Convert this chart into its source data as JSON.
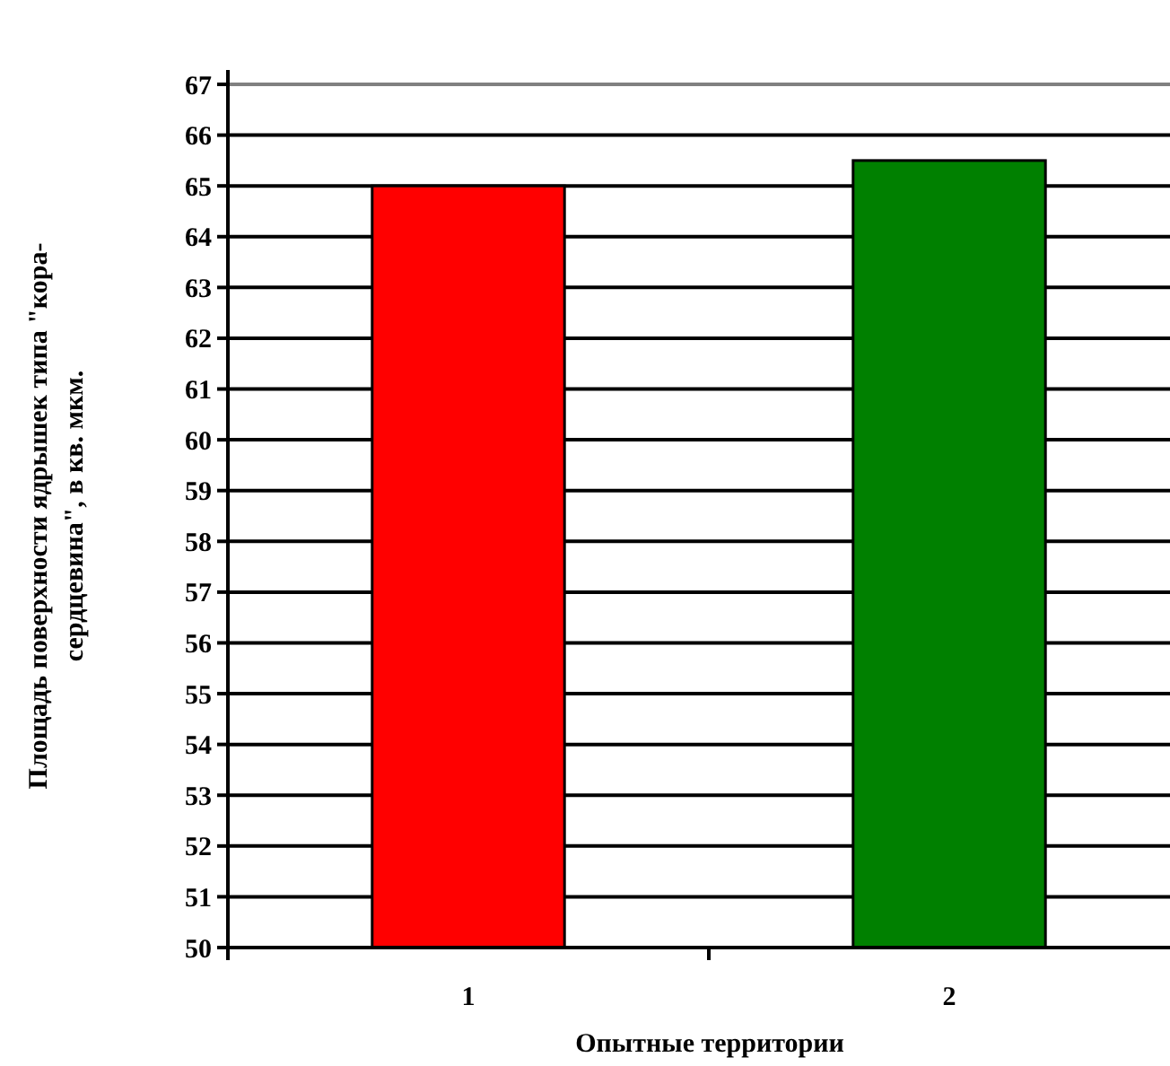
{
  "chart_data": {
    "type": "bar",
    "categories": [
      "1",
      "2"
    ],
    "values": [
      65,
      65.5
    ],
    "colors": [
      "#ff0000",
      "#008000"
    ],
    "xlabel": "Опытные территории",
    "ylabel": "Площадь поверхности ядрышек типа \"кора-\nсердцевина\", в кв. мкм.",
    "ylim": [
      50,
      67
    ],
    "yticks": [
      50,
      51,
      52,
      53,
      54,
      55,
      56,
      57,
      58,
      59,
      60,
      61,
      62,
      63,
      64,
      65,
      66,
      67
    ],
    "grid": "y"
  }
}
